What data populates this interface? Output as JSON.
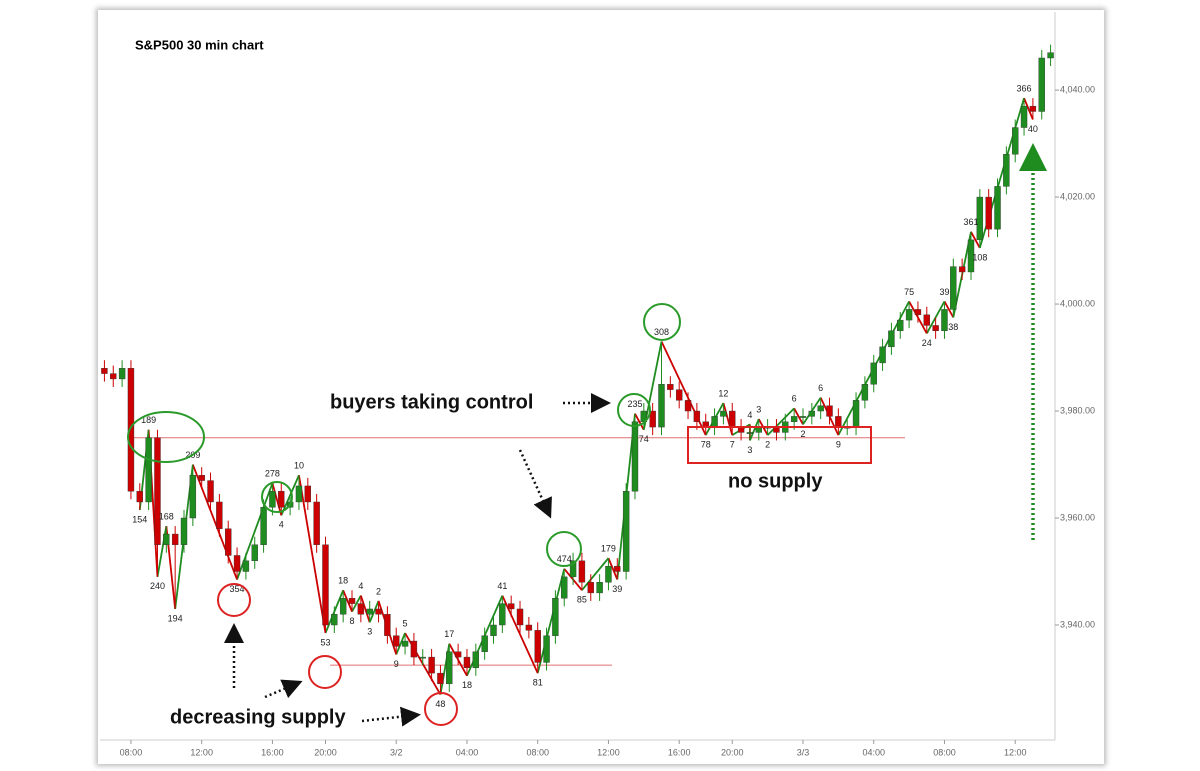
{
  "chart_data": {
    "type": "candlestick",
    "title": "S&P500 30 min chart",
    "annotations": [
      "buyers taking control",
      "no supply",
      "decreasing supply"
    ],
    "up_color": "#1e8c1e",
    "down_color": "#cc0000",
    "reference_line_color": "#e07070",
    "ylim": [
      3918.5,
      4054.6
    ],
    "yticks": [
      {
        "value": 3940,
        "label": "3,940.00"
      },
      {
        "value": 3960,
        "label": "3,960.00"
      },
      {
        "value": 3980,
        "label": "3,980.00"
      },
      {
        "value": 4000,
        "label": "4,000.00"
      },
      {
        "value": 4020,
        "label": "4,020.00"
      },
      {
        "value": 4040,
        "label": "4,040.00"
      }
    ],
    "reference_lines": [
      3975,
      3932.5
    ],
    "categories": [
      null,
      null,
      null,
      "08:00",
      null,
      null,
      null,
      null,
      null,
      null,
      null,
      "12:00",
      null,
      null,
      null,
      null,
      null,
      null,
      null,
      "16:00",
      null,
      null,
      null,
      null,
      null,
      "20:00",
      null,
      null,
      null,
      null,
      null,
      null,
      null,
      "3/2",
      null,
      null,
      null,
      null,
      null,
      null,
      null,
      "04:00",
      null,
      null,
      null,
      null,
      null,
      null,
      null,
      "08:00",
      null,
      null,
      null,
      null,
      null,
      null,
      null,
      "12:00",
      null,
      null,
      null,
      null,
      null,
      null,
      null,
      "16:00",
      null,
      null,
      null,
      null,
      null,
      "20:00",
      null,
      null,
      null,
      null,
      null,
      null,
      null,
      "3/3",
      null,
      null,
      null,
      null,
      null,
      null,
      null,
      "04:00",
      null,
      null,
      null,
      null,
      null,
      null,
      null,
      "08:00",
      null,
      null,
      null,
      null,
      null,
      null,
      null,
      "12:00",
      null,
      null,
      null,
      null
    ],
    "open": [
      3988,
      3987,
      3986,
      3988,
      3965,
      3963,
      3975,
      3955,
      3957,
      3955,
      3960,
      3968,
      3967,
      3963,
      3958,
      3953,
      3950,
      3952,
      3955,
      3962,
      3965,
      3962,
      3963,
      3966,
      3963,
      3955,
      3940,
      3942,
      3945,
      3944,
      3942,
      3943,
      3942,
      3938,
      3936,
      3937,
      3934,
      3934,
      3931,
      3929,
      3935,
      3934,
      3932,
      3935,
      3938,
      3940,
      3944,
      3943,
      3940,
      3939,
      3933,
      3938,
      3945,
      3949,
      3952,
      3948,
      3946,
      3948,
      3951,
      3950,
      3965,
      3978,
      3980,
      3977,
      3985,
      3984,
      3982,
      3980,
      3978,
      3977,
      3979,
      3980,
      3977,
      3976,
      3976,
      3977,
      3977,
      3976,
      3978,
      3979,
      3979,
      3980,
      3981,
      3979,
      3977,
      3977,
      3982,
      3985,
      3989,
      3992,
      3995,
      3997,
      3999,
      3998,
      3996,
      3995,
      3999,
      4007,
      4006,
      4012,
      4020,
      4014,
      4022,
      4028,
      4033,
      4037,
      4036,
      4046
    ],
    "high": [
      3989.5,
      3988.5,
      3989.5,
      3989.5,
      3966.5,
      3976.5,
      3976.5,
      3958.5,
      3958.5,
      3961.5,
      3970,
      3969.5,
      3968.5,
      3964.5,
      3959.5,
      3954.5,
      3953.5,
      3956.5,
      3963.5,
      3966.5,
      3966.5,
      3964.5,
      3968,
      3967.5,
      3964.5,
      3956.5,
      3943.5,
      3946.5,
      3946.5,
      3945.5,
      3944.5,
      3944.5,
      3943.5,
      3939.5,
      3938.5,
      3938.5,
      3935.5,
      3935.5,
      3932.5,
      3936.5,
      3936.5,
      3935.5,
      3936.5,
      3939.5,
      3941.5,
      3945.5,
      3945.5,
      3944.5,
      3941.5,
      3940.5,
      3939.5,
      3946.5,
      3950.5,
      3953.5,
      3953.5,
      3949.5,
      3949.5,
      3952.5,
      3952.5,
      3966.5,
      3979.5,
      3981.5,
      3981.5,
      3993,
      3986.5,
      3985.5,
      3983.5,
      3981.5,
      3979.5,
      3980.5,
      3981.5,
      3981.5,
      3978.5,
      3977.5,
      3978.5,
      3978.5,
      3978.5,
      3979.5,
      3980.5,
      3980.5,
      3981.5,
      3982.5,
      3982.5,
      3980.5,
      3978.5,
      3983.5,
      3986.5,
      3990.5,
      3993.5,
      3996.5,
      3998.5,
      4000.5,
      4000.5,
      3999.5,
      3997.5,
      4000.5,
      4008.5,
      4008.5,
      4013.5,
      4021.5,
      4021.5,
      4023.5,
      4029.5,
      4034.5,
      4038.5,
      4038.5,
      4047.5,
      4048.5
    ],
    "low": [
      3985.5,
      3984.5,
      3984.5,
      3963.5,
      3961.5,
      3961.5,
      3949,
      3953.5,
      3943,
      3953.5,
      3958.5,
      3965.5,
      3961.5,
      3956.5,
      3951.5,
      3948.5,
      3948.5,
      3950.5,
      3953.5,
      3960.5,
      3960.5,
      3960.5,
      3961.5,
      3961.5,
      3953.5,
      3938.5,
      3938.5,
      3940.5,
      3942.5,
      3940.5,
      3940.5,
      3940.5,
      3936.5,
      3934.5,
      3934.5,
      3932.5,
      3932.5,
      3929.5,
      3927,
      3927.5,
      3932.5,
      3930.5,
      3930.5,
      3933.5,
      3936.5,
      3938.5,
      3941.5,
      3938.5,
      3937.5,
      3931,
      3931.5,
      3936.5,
      3943.5,
      3947.5,
      3946.5,
      3944.5,
      3944.5,
      3946.5,
      3948.5,
      3948.5,
      3963.5,
      3976.5,
      3975.5,
      3975.5,
      3982.5,
      3980.5,
      3978.5,
      3976.5,
      3975.5,
      3975.5,
      3977.5,
      3975.5,
      3974.5,
      3974.5,
      3974.5,
      3975.5,
      3974.5,
      3974.5,
      3976.5,
      3977.5,
      3977.5,
      3978.5,
      3977.5,
      3975.5,
      3975.5,
      3975.5,
      3980.5,
      3983.5,
      3987.5,
      3990.5,
      3993.5,
      3995.5,
      3996.5,
      3994.5,
      3993.5,
      3993.5,
      3997.5,
      4004.5,
      4004.5,
      4010.5,
      4012.5,
      4012.5,
      4020.5,
      4026.5,
      4031.5,
      4034.5,
      4034.5,
      4044.5
    ],
    "close": [
      3987,
      3986,
      3988,
      3965,
      3963,
      3975,
      3955,
      3957,
      3955,
      3960,
      3968,
      3967,
      3963,
      3958,
      3953,
      3950,
      3952,
      3955,
      3962,
      3965,
      3962,
      3963,
      3966,
      3963,
      3955,
      3940,
      3942,
      3945,
      3944,
      3942,
      3943,
      3942,
      3938,
      3936,
      3937,
      3934,
      3934,
      3931,
      3929,
      3935,
      3934,
      3932,
      3935,
      3938,
      3940,
      3944,
      3943,
      3940,
      3939,
      3933,
      3938,
      3945,
      3949,
      3952,
      3948,
      3946,
      3948,
      3951,
      3950,
      3965,
      3978,
      3980,
      3977,
      3985,
      3984,
      3982,
      3980,
      3978,
      3977,
      3979,
      3980,
      3977,
      3976,
      3976,
      3977,
      3977,
      3976,
      3978,
      3979,
      3979,
      3980,
      3981,
      3979,
      3977,
      3977,
      3982,
      3985,
      3989,
      3992,
      3995,
      3997,
      3999,
      3998,
      3996,
      3995,
      3999,
      4007,
      4006,
      4012,
      4020,
      4014,
      4022,
      4028,
      4033,
      4037,
      4036,
      4046,
      4047
    ],
    "wave_volume_top": [
      null,
      null,
      null,
      null,
      null,
      189,
      null,
      168,
      null,
      null,
      209,
      null,
      null,
      null,
      null,
      null,
      null,
      null,
      null,
      278,
      null,
      null,
      10,
      null,
      null,
      null,
      null,
      18,
      null,
      4,
      null,
      2,
      null,
      null,
      5,
      null,
      null,
      null,
      null,
      17,
      null,
      null,
      null,
      null,
      null,
      41,
      null,
      null,
      null,
      null,
      null,
      null,
      474,
      null,
      null,
      null,
      null,
      179,
      null,
      null,
      235,
      null,
      null,
      308,
      null,
      null,
      null,
      null,
      null,
      null,
      12,
      null,
      null,
      4,
      3,
      null,
      null,
      null,
      6,
      null,
      null,
      6,
      null,
      null,
      null,
      null,
      null,
      null,
      null,
      null,
      null,
      75,
      null,
      null,
      null,
      39,
      null,
      null,
      361,
      null,
      null,
      null,
      null,
      null,
      366,
      null,
      null,
      null
    ],
    "wave_volume_bottom": [
      null,
      null,
      null,
      null,
      154,
      null,
      240,
      null,
      194,
      null,
      null,
      null,
      null,
      null,
      null,
      354,
      null,
      null,
      null,
      null,
      4,
      null,
      null,
      null,
      null,
      53,
      null,
      null,
      8,
      null,
      3,
      null,
      null,
      9,
      null,
      null,
      null,
      null,
      48,
      null,
      null,
      18,
      null,
      null,
      null,
      null,
      null,
      null,
      null,
      81,
      null,
      null,
      null,
      null,
      85,
      null,
      null,
      null,
      39,
      null,
      null,
      74,
      null,
      null,
      null,
      null,
      null,
      null,
      78,
      null,
      null,
      7,
      null,
      3,
      null,
      2,
      null,
      null,
      null,
      2,
      null,
      null,
      null,
      9,
      null,
      null,
      null,
      null,
      null,
      null,
      null,
      null,
      null,
      24,
      null,
      null,
      38,
      null,
      null,
      108,
      null,
      null,
      null,
      null,
      null,
      40,
      null,
      null
    ]
  }
}
